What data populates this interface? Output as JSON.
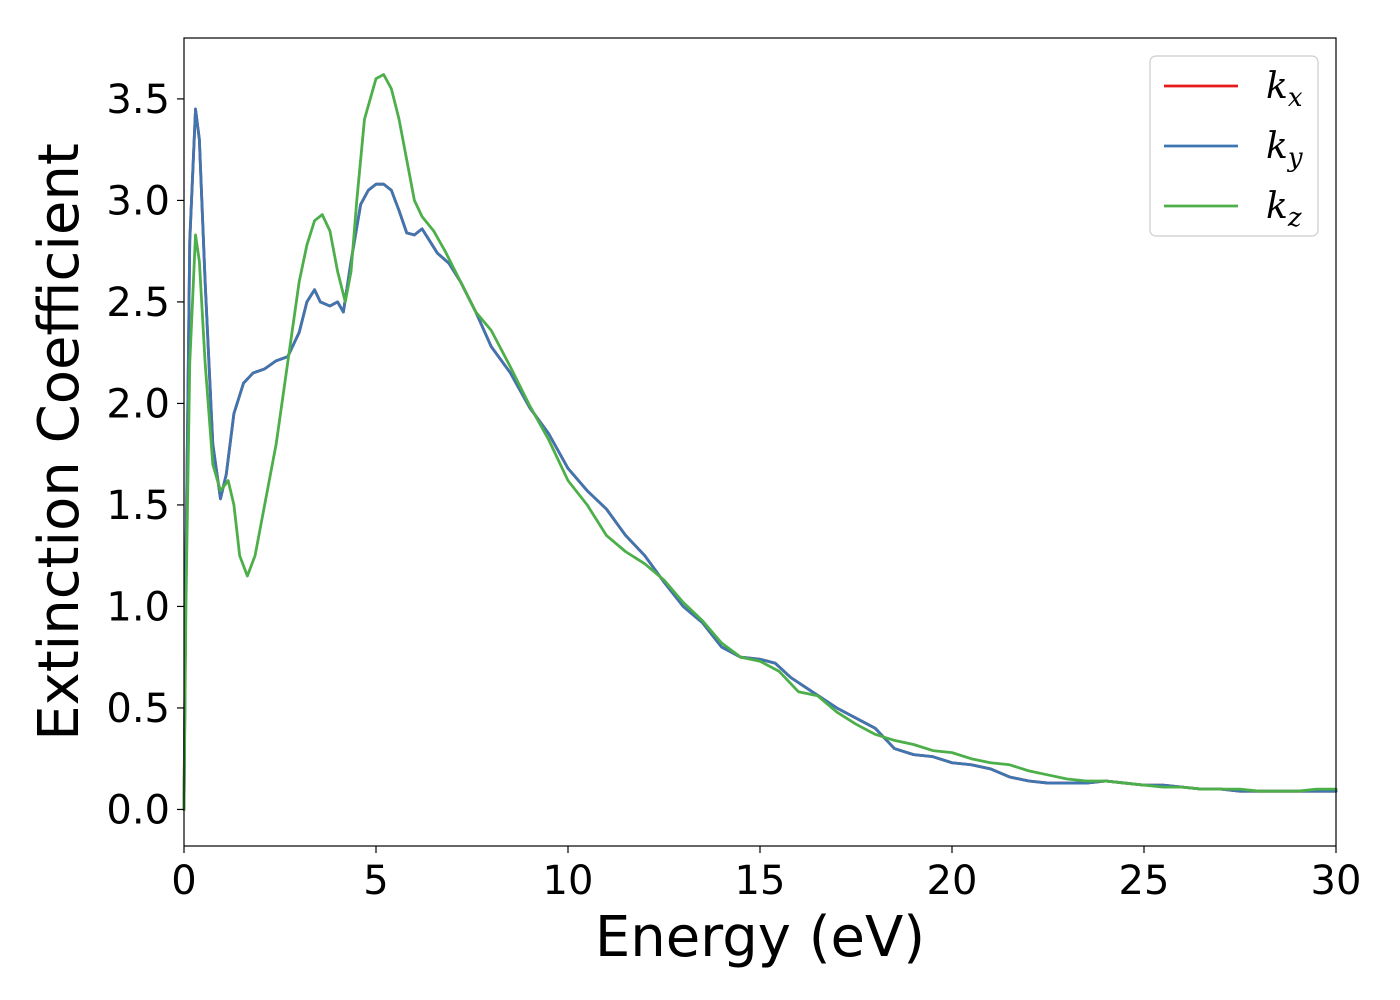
{
  "chart_data": {
    "type": "line",
    "title": "",
    "xlabel": "Energy (eV)",
    "ylabel": "Extinction Coefficient",
    "xlim": [
      0,
      30
    ],
    "ylim": [
      -0.18,
      3.8
    ],
    "xticks": [
      0,
      5,
      10,
      15,
      20,
      25,
      30
    ],
    "xtick_labels": [
      "0",
      "5",
      "10",
      "15",
      "20",
      "25",
      "30"
    ],
    "yticks": [
      0.0,
      0.5,
      1.0,
      1.5,
      2.0,
      2.5,
      3.0,
      3.5
    ],
    "ytick_labels": [
      "0.0",
      "0.5",
      "1.0",
      "1.5",
      "2.0",
      "2.5",
      "3.0",
      "3.5"
    ],
    "grid": false,
    "legend_position": "top-right",
    "series": [
      {
        "name": "k",
        "subscript": "x",
        "color": "#e41a1c",
        "points": [
          [
            0,
            0
          ],
          [
            0.05,
            1.2
          ],
          [
            0.15,
            2.8
          ],
          [
            0.3,
            3.45
          ],
          [
            0.4,
            3.3
          ],
          [
            0.55,
            2.6
          ],
          [
            0.75,
            1.8
          ],
          [
            0.95,
            1.53
          ],
          [
            1.1,
            1.65
          ],
          [
            1.3,
            1.95
          ],
          [
            1.55,
            2.1
          ],
          [
            1.8,
            2.15
          ],
          [
            2.1,
            2.17
          ],
          [
            2.4,
            2.21
          ],
          [
            2.7,
            2.23
          ],
          [
            3.0,
            2.35
          ],
          [
            3.2,
            2.5
          ],
          [
            3.4,
            2.56
          ],
          [
            3.55,
            2.5
          ],
          [
            3.8,
            2.48
          ],
          [
            4.0,
            2.5
          ],
          [
            4.15,
            2.45
          ],
          [
            4.35,
            2.7
          ],
          [
            4.6,
            2.98
          ],
          [
            4.8,
            3.05
          ],
          [
            5.0,
            3.08
          ],
          [
            5.2,
            3.08
          ],
          [
            5.4,
            3.05
          ],
          [
            5.6,
            2.95
          ],
          [
            5.8,
            2.84
          ],
          [
            6.0,
            2.83
          ],
          [
            6.2,
            2.86
          ],
          [
            6.4,
            2.8
          ],
          [
            6.6,
            2.74
          ],
          [
            6.9,
            2.69
          ],
          [
            7.2,
            2.6
          ],
          [
            7.6,
            2.45
          ],
          [
            8.0,
            2.28
          ],
          [
            8.5,
            2.15
          ],
          [
            9.0,
            1.98
          ],
          [
            9.5,
            1.85
          ],
          [
            10.0,
            1.68
          ],
          [
            10.5,
            1.57
          ],
          [
            11.0,
            1.48
          ],
          [
            11.5,
            1.35
          ],
          [
            12.0,
            1.25
          ],
          [
            12.5,
            1.12
          ],
          [
            13.0,
            1.0
          ],
          [
            13.5,
            0.92
          ],
          [
            14.0,
            0.8
          ],
          [
            14.5,
            0.75
          ],
          [
            15.0,
            0.74
          ],
          [
            15.4,
            0.72
          ],
          [
            15.8,
            0.65
          ],
          [
            16.2,
            0.6
          ],
          [
            16.6,
            0.55
          ],
          [
            17.0,
            0.5
          ],
          [
            17.5,
            0.45
          ],
          [
            18.0,
            0.4
          ],
          [
            18.5,
            0.3
          ],
          [
            19.0,
            0.27
          ],
          [
            19.5,
            0.26
          ],
          [
            20.0,
            0.23
          ],
          [
            20.5,
            0.22
          ],
          [
            21.0,
            0.2
          ],
          [
            21.5,
            0.16
          ],
          [
            22.0,
            0.14
          ],
          [
            22.5,
            0.13
          ],
          [
            23.0,
            0.13
          ],
          [
            23.5,
            0.13
          ],
          [
            24.0,
            0.14
          ],
          [
            24.5,
            0.13
          ],
          [
            25.0,
            0.12
          ],
          [
            25.5,
            0.12
          ],
          [
            26.0,
            0.11
          ],
          [
            26.5,
            0.1
          ],
          [
            27.0,
            0.1
          ],
          [
            27.5,
            0.09
          ],
          [
            28.0,
            0.09
          ],
          [
            28.5,
            0.09
          ],
          [
            29.0,
            0.09
          ],
          [
            29.5,
            0.09
          ],
          [
            30.0,
            0.09
          ]
        ]
      },
      {
        "name": "k",
        "subscript": "y",
        "color": "#3d76b0",
        "points": [
          [
            0,
            0
          ],
          [
            0.05,
            1.2
          ],
          [
            0.15,
            2.8
          ],
          [
            0.3,
            3.45
          ],
          [
            0.4,
            3.3
          ],
          [
            0.55,
            2.6
          ],
          [
            0.75,
            1.8
          ],
          [
            0.95,
            1.53
          ],
          [
            1.1,
            1.65
          ],
          [
            1.3,
            1.95
          ],
          [
            1.55,
            2.1
          ],
          [
            1.8,
            2.15
          ],
          [
            2.1,
            2.17
          ],
          [
            2.4,
            2.21
          ],
          [
            2.7,
            2.23
          ],
          [
            3.0,
            2.35
          ],
          [
            3.2,
            2.5
          ],
          [
            3.4,
            2.56
          ],
          [
            3.55,
            2.5
          ],
          [
            3.8,
            2.48
          ],
          [
            4.0,
            2.5
          ],
          [
            4.15,
            2.45
          ],
          [
            4.35,
            2.7
          ],
          [
            4.6,
            2.98
          ],
          [
            4.8,
            3.05
          ],
          [
            5.0,
            3.08
          ],
          [
            5.2,
            3.08
          ],
          [
            5.4,
            3.05
          ],
          [
            5.6,
            2.95
          ],
          [
            5.8,
            2.84
          ],
          [
            6.0,
            2.83
          ],
          [
            6.2,
            2.86
          ],
          [
            6.4,
            2.8
          ],
          [
            6.6,
            2.74
          ],
          [
            6.9,
            2.69
          ],
          [
            7.2,
            2.6
          ],
          [
            7.6,
            2.45
          ],
          [
            8.0,
            2.28
          ],
          [
            8.5,
            2.15
          ],
          [
            9.0,
            1.98
          ],
          [
            9.5,
            1.85
          ],
          [
            10.0,
            1.68
          ],
          [
            10.5,
            1.57
          ],
          [
            11.0,
            1.48
          ],
          [
            11.5,
            1.35
          ],
          [
            12.0,
            1.25
          ],
          [
            12.5,
            1.12
          ],
          [
            13.0,
            1.0
          ],
          [
            13.5,
            0.92
          ],
          [
            14.0,
            0.8
          ],
          [
            14.5,
            0.75
          ],
          [
            15.0,
            0.74
          ],
          [
            15.4,
            0.72
          ],
          [
            15.8,
            0.65
          ],
          [
            16.2,
            0.6
          ],
          [
            16.6,
            0.55
          ],
          [
            17.0,
            0.5
          ],
          [
            17.5,
            0.45
          ],
          [
            18.0,
            0.4
          ],
          [
            18.5,
            0.3
          ],
          [
            19.0,
            0.27
          ],
          [
            19.5,
            0.26
          ],
          [
            20.0,
            0.23
          ],
          [
            20.5,
            0.22
          ],
          [
            21.0,
            0.2
          ],
          [
            21.5,
            0.16
          ],
          [
            22.0,
            0.14
          ],
          [
            22.5,
            0.13
          ],
          [
            23.0,
            0.13
          ],
          [
            23.5,
            0.13
          ],
          [
            24.0,
            0.14
          ],
          [
            24.5,
            0.13
          ],
          [
            25.0,
            0.12
          ],
          [
            25.5,
            0.12
          ],
          [
            26.0,
            0.11
          ],
          [
            26.5,
            0.1
          ],
          [
            27.0,
            0.1
          ],
          [
            27.5,
            0.09
          ],
          [
            28.0,
            0.09
          ],
          [
            28.5,
            0.09
          ],
          [
            29.0,
            0.09
          ],
          [
            29.5,
            0.09
          ],
          [
            30.0,
            0.09
          ]
        ]
      },
      {
        "name": "k",
        "subscript": "z",
        "color": "#4daf4a",
        "points": [
          [
            0,
            0
          ],
          [
            0.05,
            1.0
          ],
          [
            0.15,
            2.2
          ],
          [
            0.3,
            2.83
          ],
          [
            0.4,
            2.7
          ],
          [
            0.55,
            2.2
          ],
          [
            0.75,
            1.7
          ],
          [
            0.95,
            1.57
          ],
          [
            1.15,
            1.62
          ],
          [
            1.3,
            1.5
          ],
          [
            1.45,
            1.25
          ],
          [
            1.65,
            1.15
          ],
          [
            1.85,
            1.25
          ],
          [
            2.1,
            1.5
          ],
          [
            2.4,
            1.8
          ],
          [
            2.7,
            2.2
          ],
          [
            3.0,
            2.6
          ],
          [
            3.2,
            2.78
          ],
          [
            3.4,
            2.9
          ],
          [
            3.6,
            2.93
          ],
          [
            3.8,
            2.85
          ],
          [
            4.0,
            2.65
          ],
          [
            4.2,
            2.5
          ],
          [
            4.35,
            2.65
          ],
          [
            4.5,
            3.0
          ],
          [
            4.7,
            3.4
          ],
          [
            5.0,
            3.6
          ],
          [
            5.2,
            3.62
          ],
          [
            5.4,
            3.55
          ],
          [
            5.6,
            3.4
          ],
          [
            5.8,
            3.2
          ],
          [
            6.0,
            3.0
          ],
          [
            6.2,
            2.92
          ],
          [
            6.5,
            2.85
          ],
          [
            6.8,
            2.75
          ],
          [
            7.2,
            2.6
          ],
          [
            7.6,
            2.45
          ],
          [
            8.0,
            2.36
          ],
          [
            8.5,
            2.18
          ],
          [
            9.0,
            1.99
          ],
          [
            9.5,
            1.82
          ],
          [
            10.0,
            1.62
          ],
          [
            10.5,
            1.5
          ],
          [
            11.0,
            1.35
          ],
          [
            11.5,
            1.27
          ],
          [
            12.0,
            1.21
          ],
          [
            12.5,
            1.13
          ],
          [
            13.0,
            1.02
          ],
          [
            13.5,
            0.93
          ],
          [
            14.0,
            0.82
          ],
          [
            14.5,
            0.75
          ],
          [
            15.0,
            0.73
          ],
          [
            15.5,
            0.68
          ],
          [
            16.0,
            0.58
          ],
          [
            16.5,
            0.56
          ],
          [
            17.0,
            0.48
          ],
          [
            17.5,
            0.42
          ],
          [
            18.0,
            0.37
          ],
          [
            18.5,
            0.34
          ],
          [
            19.0,
            0.32
          ],
          [
            19.5,
            0.29
          ],
          [
            20.0,
            0.28
          ],
          [
            20.5,
            0.25
          ],
          [
            21.0,
            0.23
          ],
          [
            21.5,
            0.22
          ],
          [
            22.0,
            0.19
          ],
          [
            22.5,
            0.17
          ],
          [
            23.0,
            0.15
          ],
          [
            23.5,
            0.14
          ],
          [
            24.0,
            0.14
          ],
          [
            24.5,
            0.13
          ],
          [
            25.0,
            0.12
          ],
          [
            25.5,
            0.11
          ],
          [
            26.0,
            0.11
          ],
          [
            26.5,
            0.1
          ],
          [
            27.0,
            0.1
          ],
          [
            27.5,
            0.1
          ],
          [
            28.0,
            0.09
          ],
          [
            28.5,
            0.09
          ],
          [
            29.0,
            0.09
          ],
          [
            29.5,
            0.1
          ],
          [
            30.0,
            0.1
          ]
        ]
      }
    ]
  }
}
